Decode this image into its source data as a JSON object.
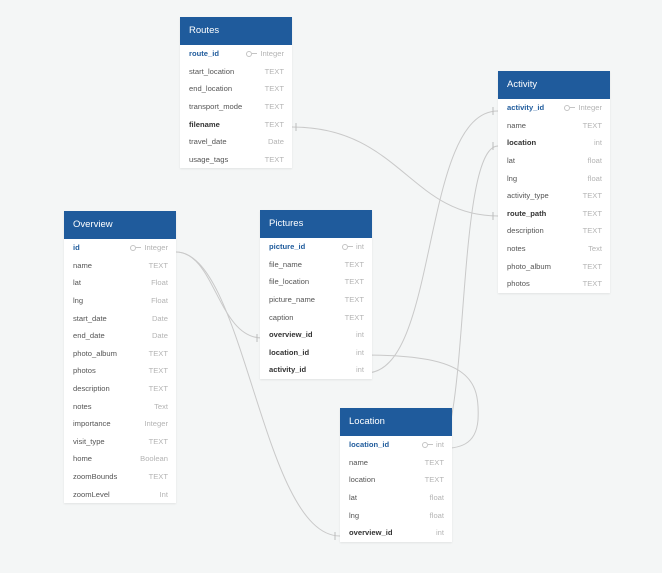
{
  "tables": {
    "routes": {
      "title": "Routes",
      "fields": [
        {
          "name": "route_id",
          "type": "Integer",
          "pk": true
        },
        {
          "name": "start_location",
          "type": "TEXT"
        },
        {
          "name": "end_location",
          "type": "TEXT"
        },
        {
          "name": "transport_mode",
          "type": "TEXT"
        },
        {
          "name": "filename",
          "type": "TEXT",
          "fk": true
        },
        {
          "name": "travel_date",
          "type": "Date"
        },
        {
          "name": "usage_tags",
          "type": "TEXT"
        }
      ]
    },
    "activity": {
      "title": "Activity",
      "fields": [
        {
          "name": "activity_id",
          "type": "Integer",
          "pk": true
        },
        {
          "name": "name",
          "type": "TEXT"
        },
        {
          "name": "location",
          "type": "int",
          "fk": true
        },
        {
          "name": "lat",
          "type": "float"
        },
        {
          "name": "lng",
          "type": "float"
        },
        {
          "name": "activity_type",
          "type": "TEXT"
        },
        {
          "name": "route_path",
          "type": "TEXT",
          "fk": true
        },
        {
          "name": "description",
          "type": "TEXT"
        },
        {
          "name": "notes",
          "type": "Text"
        },
        {
          "name": "photo_album",
          "type": "TEXT"
        },
        {
          "name": "photos",
          "type": "TEXT"
        }
      ]
    },
    "overview": {
      "title": "Overview",
      "fields": [
        {
          "name": "id",
          "type": "Integer",
          "pk": true
        },
        {
          "name": "name",
          "type": "TEXT"
        },
        {
          "name": "lat",
          "type": "Float"
        },
        {
          "name": "lng",
          "type": "Float"
        },
        {
          "name": "start_date",
          "type": "Date"
        },
        {
          "name": "end_date",
          "type": "Date"
        },
        {
          "name": "photo_album",
          "type": "TEXT"
        },
        {
          "name": "photos",
          "type": "TEXT"
        },
        {
          "name": "description",
          "type": "TEXT"
        },
        {
          "name": "notes",
          "type": "Text"
        },
        {
          "name": "importance",
          "type": "Integer"
        },
        {
          "name": "visit_type",
          "type": "TEXT"
        },
        {
          "name": "home",
          "type": "Boolean"
        },
        {
          "name": "zoomBounds",
          "type": "TEXT"
        },
        {
          "name": "zoomLevel",
          "type": "Int"
        }
      ]
    },
    "pictures": {
      "title": "Pictures",
      "fields": [
        {
          "name": "picture_id",
          "type": "int",
          "pk": true
        },
        {
          "name": "file_name",
          "type": "TEXT"
        },
        {
          "name": "file_location",
          "type": "TEXT"
        },
        {
          "name": "picture_name",
          "type": "TEXT"
        },
        {
          "name": "caption",
          "type": "TEXT"
        },
        {
          "name": "overview_id",
          "type": "int",
          "fk": true
        },
        {
          "name": "location_id",
          "type": "int",
          "fk": true
        },
        {
          "name": "activity_id",
          "type": "int",
          "fk": true
        }
      ]
    },
    "location": {
      "title": "Location",
      "fields": [
        {
          "name": "location_id",
          "type": "int",
          "pk": true
        },
        {
          "name": "name",
          "type": "TEXT"
        },
        {
          "name": "location",
          "type": "TEXT"
        },
        {
          "name": "lat",
          "type": "float"
        },
        {
          "name": "lng",
          "type": "float"
        },
        {
          "name": "overview_id",
          "type": "int",
          "fk": true
        }
      ]
    }
  }
}
